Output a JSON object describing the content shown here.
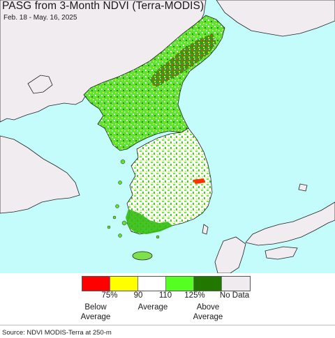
{
  "map": {
    "title": "PASG from 3-Month NDVI (Terra-MODIS)",
    "date_range": "Feb. 18 - May. 16, 2025",
    "colors": {
      "sea": "#c4fbfb",
      "land_other": "#f0ecef",
      "border": "#222222"
    }
  },
  "legend": {
    "swatches": [
      {
        "color": "#ff0000",
        "meaning": "below 75%"
      },
      {
        "color": "#ffff00",
        "meaning": "75-90%"
      },
      {
        "color": "#ffffff",
        "meaning": "90-110%"
      },
      {
        "color": "#55ff22",
        "meaning": "110-125%"
      },
      {
        "color": "#227700",
        "meaning": "above 125%"
      },
      {
        "color": "#efebef",
        "meaning": "No Data"
      }
    ],
    "ticks": [
      "75%",
      "90",
      "110",
      "125%",
      "No Data"
    ],
    "below_label": [
      "Below",
      "Average"
    ],
    "average_label": "Average",
    "above_label": [
      "Above",
      "Average"
    ]
  },
  "source": "Source: NDVI MODIS-Terra at 250-m"
}
